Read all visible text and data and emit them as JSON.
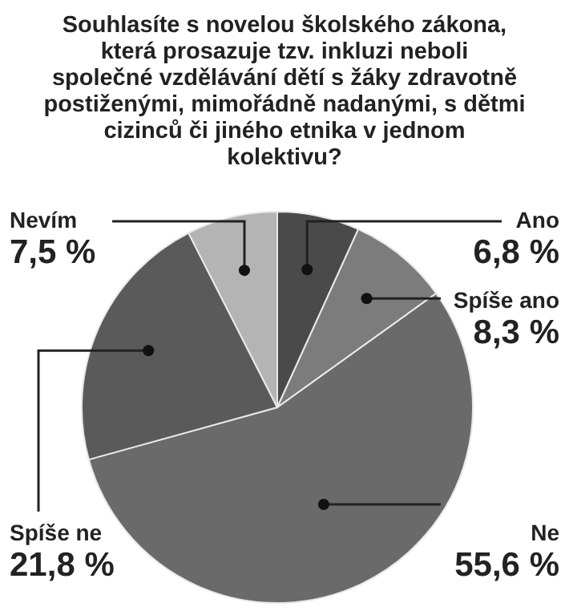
{
  "chart_data": {
    "type": "pie",
    "title": "Souhlasíte s novelou školského zákona, která prosazuje tzv. inkluzi neboli společné vzdělávání dětí s žáky zdravotně postiženými, mimořádně nadanými, s dětmi cizinců či jiného etnika v jednom kolektivu?",
    "categories": [
      "Ano",
      "Spíše ano",
      "Ne",
      "Spíše ne",
      "Nevím"
    ],
    "values": [
      6.8,
      8.3,
      55.6,
      21.8,
      7.5
    ],
    "value_labels": [
      "6,8 %",
      "8,3 %",
      "55,6 %",
      "21,8 %",
      "7,5 %"
    ],
    "colors": [
      "#4a4a4a",
      "#7c7c7c",
      "#6a6a6a",
      "#5a5a5a",
      "#b4b4b4"
    ]
  }
}
